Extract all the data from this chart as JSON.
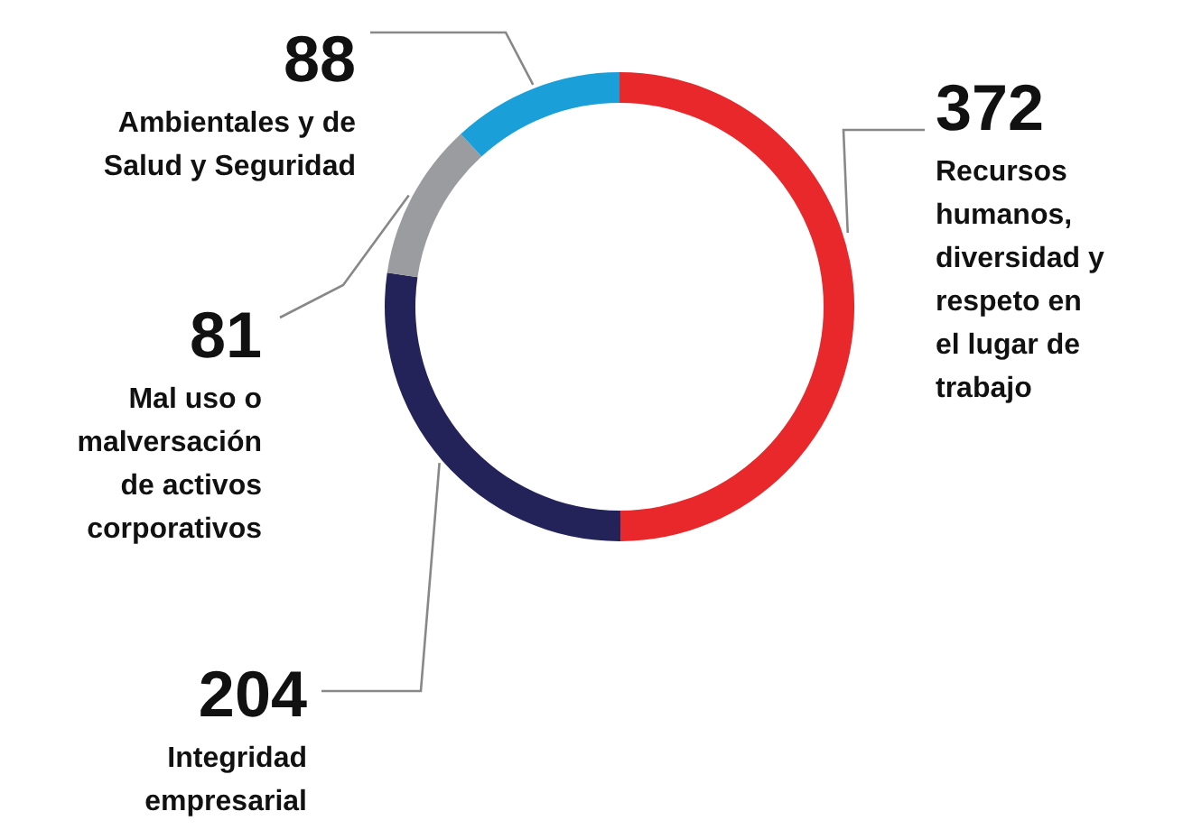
{
  "chart_data": {
    "type": "donut",
    "categories": [
      "Recursos humanos, diversidad y respeto en el lugar de trabajo",
      "Integridad empresarial",
      "Mal uso o malversación de activos corporativos",
      "Ambientales y de Salud y Seguridad"
    ],
    "values": [
      372,
      204,
      81,
      88
    ],
    "colors": [
      "#e8282b",
      "#23235a",
      "#9b9c9f",
      "#1a9fd9"
    ],
    "data_labels": true
  }
}
